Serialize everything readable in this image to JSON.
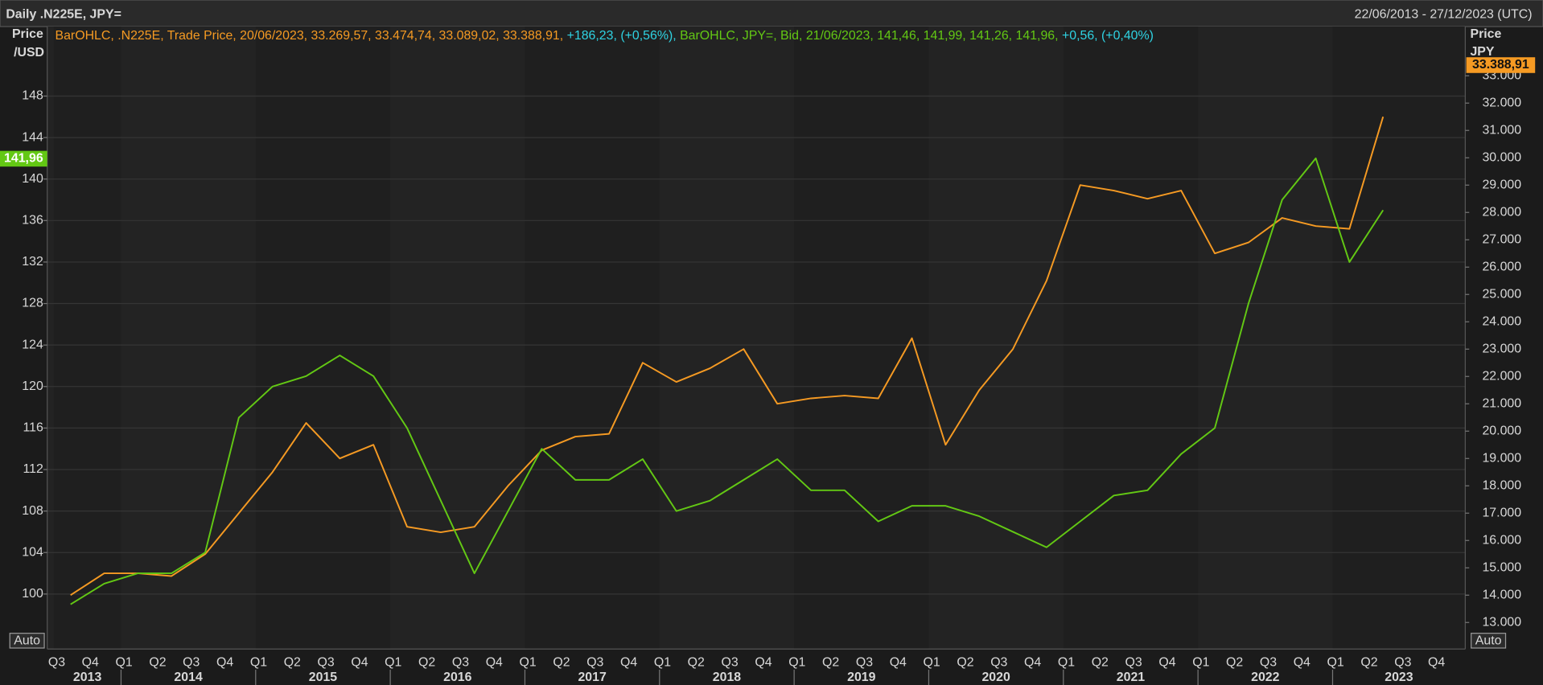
{
  "chart_data": {
    "type": "line",
    "title": "Daily .N225E, JPY=",
    "date_range": "22/06/2013 - 27/12/2023 (UTC)",
    "y_label": [
      "Price",
      "/USD"
    ],
    "y2_label": [
      "Price",
      "JPY"
    ],
    "left_scale_button": "Auto",
    "right_scale_button": "Auto",
    "categories": [
      "Q3",
      "Q4",
      "Q1",
      "Q2",
      "Q3",
      "Q4",
      "Q1",
      "Q2",
      "Q3",
      "Q4",
      "Q1",
      "Q2",
      "Q3",
      "Q4",
      "Q1",
      "Q2",
      "Q3",
      "Q4",
      "Q1",
      "Q2",
      "Q3",
      "Q4",
      "Q1",
      "Q2",
      "Q3",
      "Q4",
      "Q1",
      "Q2",
      "Q3",
      "Q4",
      "Q1",
      "Q2",
      "Q3",
      "Q4",
      "Q1",
      "Q2",
      "Q3",
      "Q4",
      "Q1",
      "Q2",
      "Q3",
      "Q4"
    ],
    "years": [
      "2013",
      "2014",
      "2015",
      "2016",
      "2017",
      "2018",
      "2019",
      "2020",
      "2021",
      "2022",
      "2023"
    ],
    "ylim": [
      94.7,
      154.7
    ],
    "yticks": [
      100,
      104,
      108,
      112,
      116,
      120,
      124,
      128,
      132,
      136,
      140,
      144,
      148
    ],
    "y2lim": [
      12030,
      34800
    ],
    "y2ticks": [
      {
        "value": 13000,
        "label": "13.000"
      },
      {
        "value": 14000,
        "label": "14.000"
      },
      {
        "value": 15000,
        "label": "15.000"
      },
      {
        "value": 16000,
        "label": "16.000"
      },
      {
        "value": 17000,
        "label": "17.000"
      },
      {
        "value": 18000,
        "label": "18.000"
      },
      {
        "value": 19000,
        "label": "19.000"
      },
      {
        "value": 20000,
        "label": "20.000"
      },
      {
        "value": 21000,
        "label": "21.000"
      },
      {
        "value": 22000,
        "label": "22.000"
      },
      {
        "value": 23000,
        "label": "23.000"
      },
      {
        "value": 24000,
        "label": "24.000"
      },
      {
        "value": 25000,
        "label": "25.000"
      },
      {
        "value": 26000,
        "label": "26.000"
      },
      {
        "value": 27000,
        "label": "27.000"
      },
      {
        "value": 28000,
        "label": "28.000"
      },
      {
        "value": 29000,
        "label": "29.000"
      },
      {
        "value": 30000,
        "label": "30.000"
      },
      {
        "value": 31000,
        "label": "31.000"
      },
      {
        "value": 32000,
        "label": "32.000"
      },
      {
        "value": 33000,
        "label": "33.000"
      }
    ],
    "grid": true,
    "change_color": "#2fd3e3",
    "series": [
      {
        "name": "BarOHLC, .N225E, Trade Price, 20/06/2023, 33.269,57, 33.474,74, 33.089,02, 33.388,91,",
        "change": "+186,23, (+0,56%),",
        "color": "#f59a23",
        "axis": "y2",
        "last": 33388.91,
        "last_label": "33.388,91",
        "values": [
          14000,
          14800,
          14800,
          14700,
          15500,
          17000,
          18500,
          20300,
          19000,
          19500,
          16500,
          16300,
          16500,
          18000,
          19300,
          19800,
          19900,
          22500,
          21800,
          22300,
          23000,
          21000,
          21200,
          21300,
          21200,
          23400,
          19500,
          21500,
          23000,
          25500,
          29000,
          28800,
          28500,
          28800,
          26500,
          26900,
          27800,
          27500,
          27400,
          31500,
          null,
          null
        ]
      },
      {
        "name": "BarOHLC, JPY=, Bid, 21/06/2023, 141,46, 141,99, 141,26, 141,96,",
        "change": "+0,56, (+0,40%)",
        "color": "#63c814",
        "axis": "y",
        "last": 141.96,
        "last_label": "141,96",
        "values": [
          99,
          101,
          102,
          102,
          104,
          117,
          120,
          121,
          123,
          121,
          116,
          109,
          102,
          108,
          114,
          111,
          111,
          113,
          108,
          109,
          111,
          113,
          110,
          110,
          107,
          108.5,
          108.5,
          107.5,
          106,
          104.5,
          107,
          109.5,
          110,
          113.5,
          116,
          128,
          138,
          142,
          132,
          137,
          null,
          null
        ]
      }
    ]
  }
}
